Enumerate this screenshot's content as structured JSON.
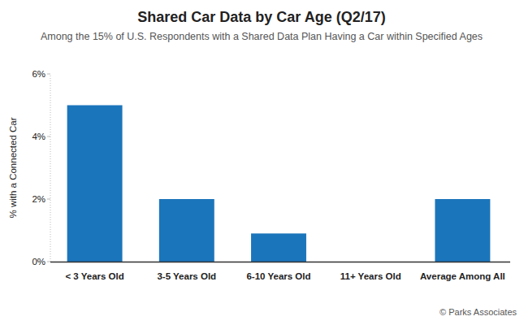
{
  "chart_data": {
    "type": "bar",
    "title": "Shared Car Data by Car Age (Q2/17)",
    "subtitle": "Among the 15% of U.S. Respondents with a Shared Data Plan Having a Car within Specified Ages",
    "y_label": "% with a Connected Car",
    "source": "© Parks Associates",
    "categories": [
      "< 3 Years Old",
      "3-5 Years Old",
      "6-10 Years Old",
      "11+ Years Old",
      "Average Among All"
    ],
    "values": [
      5,
      2,
      0.9,
      0,
      2
    ],
    "color": "#1b75bb",
    "ylim": [
      0,
      6
    ],
    "yticks": [
      {
        "value": 0,
        "label": "0%"
      },
      {
        "value": 2,
        "label": "2%"
      },
      {
        "value": 4,
        "label": "4%"
      },
      {
        "value": 6,
        "label": "6%"
      }
    ],
    "grid": false
  }
}
